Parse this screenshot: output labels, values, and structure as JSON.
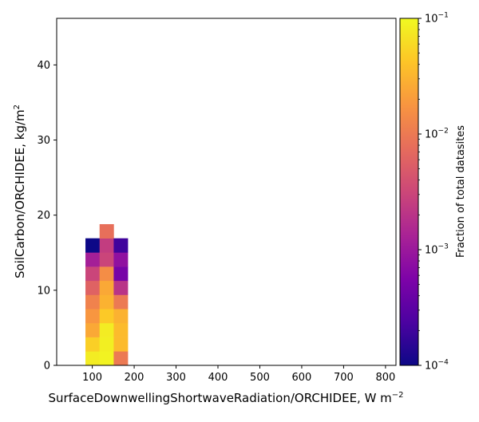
{
  "chart_data": {
    "type": "heatmap",
    "title": "",
    "xlabel": "SurfaceDownwellingShortwaveRadiation/ORCHIDEE,  W m",
    "xlabel_sup": "−2",
    "ylabel": "SoilCarbon/ORCHIDEE,  kg/m",
    "ylabel_sup": "2",
    "xlim": [
      15,
      825
    ],
    "ylim": [
      0,
      46.2
    ],
    "x_ticks": [
      100,
      200,
      300,
      400,
      500,
      600,
      700,
      800
    ],
    "y_ticks": [
      0,
      10,
      20,
      30,
      40
    ],
    "x_bin_edges": [
      83.7,
      117.4,
      151.1,
      184.8
    ],
    "y_bin_width": 1.88,
    "cells": [
      {
        "x_bin": 0,
        "y_bin": 0,
        "value": 0.08
      },
      {
        "x_bin": 0,
        "y_bin": 1,
        "value": 0.05
      },
      {
        "x_bin": 0,
        "y_bin": 2,
        "value": 0.025
      },
      {
        "x_bin": 0,
        "y_bin": 3,
        "value": 0.018
      },
      {
        "x_bin": 0,
        "y_bin": 4,
        "value": 0.012
      },
      {
        "x_bin": 0,
        "y_bin": 5,
        "value": 0.006
      },
      {
        "x_bin": 0,
        "y_bin": 6,
        "value": 0.003
      },
      {
        "x_bin": 0,
        "y_bin": 7,
        "value": 0.0012
      },
      {
        "x_bin": 0,
        "y_bin": 8,
        "value": 0.0001
      },
      {
        "x_bin": 1,
        "y_bin": 0,
        "value": 0.09
      },
      {
        "x_bin": 1,
        "y_bin": 1,
        "value": 0.085
      },
      {
        "x_bin": 1,
        "y_bin": 2,
        "value": 0.08
      },
      {
        "x_bin": 1,
        "y_bin": 3,
        "value": 0.045
      },
      {
        "x_bin": 1,
        "y_bin": 4,
        "value": 0.03
      },
      {
        "x_bin": 1,
        "y_bin": 5,
        "value": 0.025
      },
      {
        "x_bin": 1,
        "y_bin": 6,
        "value": 0.015
      },
      {
        "x_bin": 1,
        "y_bin": 7,
        "value": 0.003
      },
      {
        "x_bin": 1,
        "y_bin": 8,
        "value": 0.0025
      },
      {
        "x_bin": 1,
        "y_bin": 9,
        "value": 0.008
      },
      {
        "x_bin": 2,
        "y_bin": 0,
        "value": 0.01
      },
      {
        "x_bin": 2,
        "y_bin": 1,
        "value": 0.035
      },
      {
        "x_bin": 2,
        "y_bin": 2,
        "value": 0.035
      },
      {
        "x_bin": 2,
        "y_bin": 3,
        "value": 0.03
      },
      {
        "x_bin": 2,
        "y_bin": 4,
        "value": 0.01
      },
      {
        "x_bin": 2,
        "y_bin": 5,
        "value": 0.002
      },
      {
        "x_bin": 2,
        "y_bin": 6,
        "value": 0.0005
      },
      {
        "x_bin": 2,
        "y_bin": 7,
        "value": 0.0008
      },
      {
        "x_bin": 2,
        "y_bin": 8,
        "value": 0.0002
      }
    ],
    "colorbar": {
      "label": "Fraction of total datasites",
      "scale": "log",
      "min": 0.0001,
      "max": 0.1,
      "ticks": [
        {
          "value": 0.1,
          "base": "10",
          "exp": "−1"
        },
        {
          "value": 0.01,
          "base": "10",
          "exp": "−2"
        },
        {
          "value": 0.001,
          "base": "10",
          "exp": "−3"
        },
        {
          "value": 0.0001,
          "base": "10",
          "exp": "−4"
        }
      ],
      "colormap": "plasma"
    }
  }
}
